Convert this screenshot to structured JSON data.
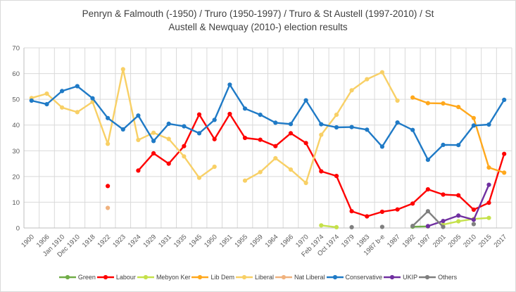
{
  "window": {
    "background": "#ffffff",
    "border_color": "#d9d9d9"
  },
  "title": {
    "line1": "Penryn & Falmouth (-1950) / Truro (1950-1997) / Truro & St Austell (1997-2010) / St",
    "line2": "Austell & Newquay (2010-) election results",
    "full": "Penryn & Falmouth (-1950) / Truro (1950-1997) / Truro & St Austell (1997-2010) / St Austell & Newquay (2010-) election results"
  },
  "chart_data": {
    "type": "line",
    "title": "Penryn & Falmouth (-1950) / Truro (1950-1997) / Truro & St Austell (1997-2010) / St Austell & Newquay (2010-) election results",
    "xlabel": "",
    "ylabel": "",
    "ylim": [
      0,
      70
    ],
    "y_tick_step": 10,
    "grid": true,
    "legend_position": "bottom",
    "grid_color": "#d9d9d9",
    "axis_color": "#bfbfbf",
    "tick_label_color": "#595959",
    "categories": [
      "1900",
      "1906",
      "Jan 1910",
      "Dec 1910",
      "1918",
      "1922",
      "1923",
      "1924",
      "1929",
      "1931",
      "1935",
      "1945",
      "1950",
      "1951",
      "1955",
      "1959",
      "1964",
      "1966",
      "1970",
      "Feb 1974",
      "Oct 1974",
      "1979",
      "1983",
      "1987 b-e",
      "1987",
      "1992",
      "1997",
      "2001",
      "2005",
      "2010",
      "2015",
      "2017"
    ],
    "series": [
      {
        "name": "Green",
        "color": "#70AD47",
        "values": [
          null,
          null,
          null,
          null,
          null,
          null,
          null,
          null,
          null,
          null,
          null,
          null,
          null,
          null,
          null,
          null,
          null,
          null,
          null,
          null,
          null,
          null,
          null,
          null,
          null,
          0.5,
          0.6,
          null,
          null,
          null,
          null,
          null
        ]
      },
      {
        "name": "Labour",
        "color": "#FE0000",
        "values": [
          null,
          null,
          null,
          null,
          null,
          16.3,
          null,
          22.3,
          29.0,
          25.0,
          31.8,
          44.1,
          34.5,
          44.3,
          35.0,
          34.3,
          31.8,
          36.8,
          33.0,
          22.0,
          20.2,
          6.5,
          4.5,
          6.3,
          7.2,
          9.5,
          15.0,
          13.0,
          12.7,
          7.1,
          9.8,
          28.8
        ]
      },
      {
        "name": "Mebyon Ker",
        "color": "#C5E14A",
        "values": [
          null,
          null,
          null,
          null,
          null,
          null,
          null,
          null,
          null,
          null,
          null,
          null,
          null,
          null,
          null,
          null,
          null,
          null,
          null,
          1.0,
          0.3,
          null,
          null,
          null,
          null,
          null,
          null,
          1.3,
          2.6,
          3.5,
          3.9,
          null
        ]
      },
      {
        "name": "Lib Dem",
        "color": "#FFA81C",
        "values": [
          null,
          null,
          null,
          null,
          null,
          null,
          null,
          null,
          null,
          null,
          null,
          null,
          null,
          null,
          null,
          null,
          null,
          null,
          null,
          null,
          null,
          null,
          null,
          null,
          null,
          50.7,
          48.5,
          48.4,
          47.0,
          42.7,
          23.5,
          21.5
        ]
      },
      {
        "name": "Liberal",
        "color": "#F8D066",
        "values": [
          50.5,
          52.2,
          46.8,
          45.0,
          49.0,
          32.7,
          61.7,
          34.2,
          37.0,
          34.6,
          27.8,
          19.5,
          23.8,
          null,
          18.4,
          21.7,
          27.1,
          22.7,
          17.5,
          36.2,
          44.0,
          53.5,
          57.8,
          60.5,
          49.5,
          null,
          null,
          null,
          null,
          null,
          null,
          null
        ]
      },
      {
        "name": "Nat Liberal",
        "color": "#F0B27E",
        "values": [
          null,
          null,
          null,
          null,
          null,
          7.8,
          null,
          null,
          null,
          null,
          null,
          null,
          null,
          null,
          null,
          null,
          null,
          null,
          null,
          null,
          null,
          null,
          null,
          null,
          null,
          null,
          null,
          null,
          null,
          null,
          null,
          null
        ]
      },
      {
        "name": "Conservative",
        "color": "#1F7AC6",
        "values": [
          49.5,
          48.1,
          53.2,
          55.1,
          50.4,
          42.7,
          38.3,
          43.7,
          33.8,
          40.5,
          39.5,
          36.8,
          42.0,
          55.7,
          46.4,
          44.0,
          40.9,
          40.4,
          49.6,
          40.3,
          39.1,
          39.2,
          38.2,
          31.6,
          41.0,
          38.1,
          26.5,
          32.3,
          32.2,
          39.8,
          40.2,
          49.8
        ]
      },
      {
        "name": "UKIP",
        "color": "#7030A0",
        "values": [
          null,
          null,
          null,
          null,
          null,
          null,
          null,
          null,
          null,
          null,
          null,
          null,
          null,
          null,
          null,
          null,
          null,
          null,
          null,
          null,
          null,
          null,
          null,
          null,
          null,
          null,
          0.7,
          2.7,
          4.8,
          3.2,
          16.8,
          null
        ]
      },
      {
        "name": "Others",
        "color": "#7F7F7F",
        "values": [
          null,
          null,
          null,
          null,
          null,
          null,
          null,
          null,
          null,
          null,
          null,
          null,
          null,
          null,
          null,
          null,
          null,
          null,
          null,
          null,
          null,
          0.3,
          null,
          0.4,
          null,
          0.8,
          6.5,
          0.4,
          null,
          1.5,
          null,
          null
        ]
      }
    ]
  }
}
